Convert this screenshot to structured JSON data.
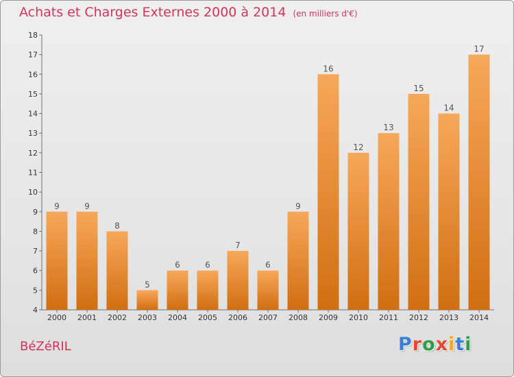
{
  "header": {
    "title": "Achats et Charges Externes 2000 à 2014",
    "unit": "(en milliers d'€)"
  },
  "footer": {
    "commune": "BéZéRIL"
  },
  "logo": {
    "text": "Proxiti",
    "letter_colors": [
      "#3a7fd6",
      "#e8462e",
      "#2f9e44",
      "#e8462e",
      "#f5a623",
      "#3a7fd6",
      "#2f9e44"
    ]
  },
  "colors": {
    "bar_top": "#f7a85a",
    "bar_bottom": "#d16e12",
    "title": "#d2345a"
  },
  "chart_data": {
    "type": "bar",
    "categories": [
      "2000",
      "2001",
      "2002",
      "2003",
      "2004",
      "2005",
      "2006",
      "2007",
      "2008",
      "2009",
      "2010",
      "2011",
      "2012",
      "2013",
      "2014"
    ],
    "values": [
      9,
      9,
      8,
      5,
      6,
      6,
      7,
      6,
      9,
      16,
      12,
      13,
      15,
      14,
      17
    ],
    "title": "Achats et Charges Externes 2000 à 2014",
    "xlabel": "",
    "ylabel": "",
    "ylim": [
      4,
      18
    ],
    "yticks": [
      4,
      5,
      6,
      7,
      8,
      9,
      10,
      11,
      12,
      13,
      14,
      15,
      16,
      17,
      18
    ],
    "grid": false,
    "data_labels": true
  }
}
